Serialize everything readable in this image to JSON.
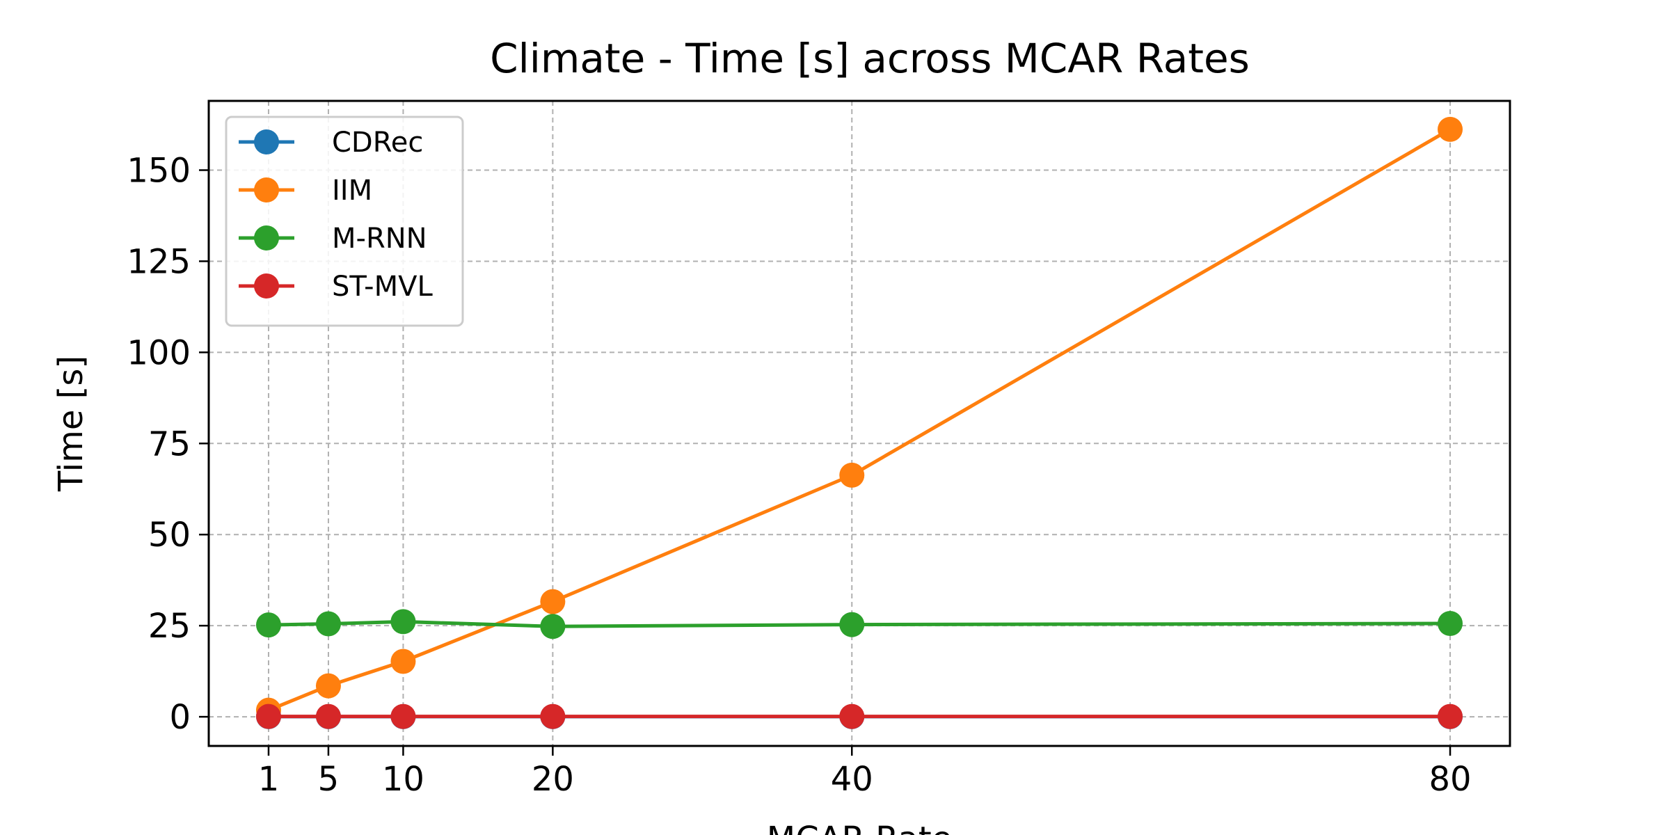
{
  "chart_data": {
    "type": "line",
    "title": "Climate - Time [s] across MCAR Rates",
    "xlabel": "MCAR Rate",
    "ylabel": "Time [s]",
    "x": [
      1,
      5,
      10,
      20,
      40,
      80
    ],
    "xticks": [
      1,
      5,
      10,
      20,
      40,
      80
    ],
    "yticks": [
      0,
      25,
      50,
      75,
      100,
      125,
      150
    ],
    "xlim": [
      -3,
      84
    ],
    "ylim": [
      -8,
      169
    ],
    "grid": true,
    "legend_position": "upper-left",
    "series": [
      {
        "name": "CDRec",
        "color": "#1f77b4",
        "values": [
          0.05,
          0.05,
          0.05,
          0.05,
          0.05,
          0.05
        ]
      },
      {
        "name": "IIM",
        "color": "#ff7f0e",
        "values": [
          1.8,
          8.5,
          15.2,
          31.6,
          66.3,
          161.2
        ]
      },
      {
        "name": "M-RNN",
        "color": "#2ca02c",
        "values": [
          25.2,
          25.5,
          26.1,
          24.8,
          25.3,
          25.6
        ]
      },
      {
        "name": "ST-MVL",
        "color": "#d62728",
        "values": [
          0.1,
          0.1,
          0.1,
          0.1,
          0.1,
          0.1
        ]
      }
    ]
  }
}
